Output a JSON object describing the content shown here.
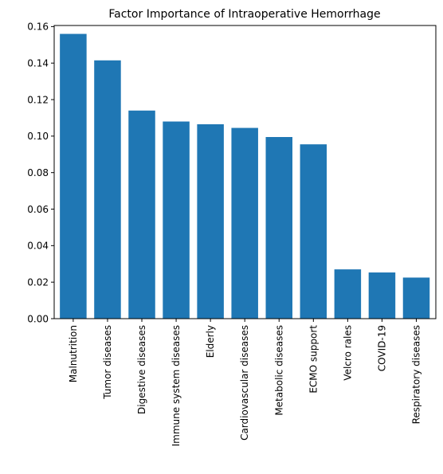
{
  "chart_data": {
    "type": "bar",
    "title": "Factor Importance of Intraoperative Hemorrhage",
    "xlabel": "",
    "ylabel": "",
    "categories": [
      "Malnutrition",
      "Tumor diseases",
      "Digestive diseases",
      "Immune system diseases",
      "Elderly",
      "Cardiovascular diseases",
      "Metabolic diseases",
      "ECMO support",
      "Velcro rales",
      "COVID-19",
      "Respiratory diseases"
    ],
    "values": [
      0.156,
      0.1415,
      0.114,
      0.108,
      0.1065,
      0.1045,
      0.0995,
      0.0955,
      0.027,
      0.0253,
      0.0225
    ],
    "ylim": [
      0,
      0.1606
    ],
    "yticks": [
      "0.00",
      "0.02",
      "0.04",
      "0.06",
      "0.08",
      "0.10",
      "0.12",
      "0.14",
      "0.16"
    ],
    "bar_color": "#1f77b4",
    "grid": false,
    "legend": "none"
  }
}
